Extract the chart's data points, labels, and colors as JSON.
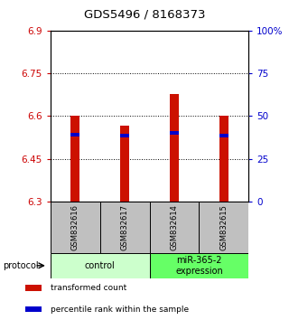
{
  "title": "GDS5496 / 8168373",
  "samples": [
    "GSM832616",
    "GSM832617",
    "GSM832614",
    "GSM832615"
  ],
  "red_values": [
    6.602,
    6.565,
    6.678,
    6.602
  ],
  "blue_values": [
    6.527,
    6.524,
    6.535,
    6.524
  ],
  "ylim_left": [
    6.3,
    6.9
  ],
  "ylim_right": [
    0,
    100
  ],
  "yticks_left": [
    6.3,
    6.45,
    6.6,
    6.75,
    6.9
  ],
  "yticks_right": [
    0,
    25,
    50,
    75,
    100
  ],
  "ytick_labels_left": [
    "6.3",
    "6.45",
    "6.6",
    "6.75",
    "6.9"
  ],
  "ytick_labels_right": [
    "0",
    "25",
    "50",
    "75",
    "100%"
  ],
  "left_tick_color": "#cc0000",
  "right_tick_color": "#0000cc",
  "bar_color": "#cc1100",
  "blue_color": "#0000cc",
  "bg_color": "#ffffff",
  "plot_bg": "#ffffff",
  "groups": [
    {
      "label": "control",
      "samples": [
        0,
        1
      ],
      "color": "#ccffcc"
    },
    {
      "label": "miR-365-2\nexpression",
      "samples": [
        2,
        3
      ],
      "color": "#66ff66"
    }
  ],
  "protocol_label": "protocol",
  "legend_items": [
    {
      "color": "#cc1100",
      "label": "transformed count"
    },
    {
      "color": "#0000cc",
      "label": "percentile rank within the sample"
    }
  ],
  "bar_width": 0.18,
  "group_box_color": "#c0c0c0"
}
